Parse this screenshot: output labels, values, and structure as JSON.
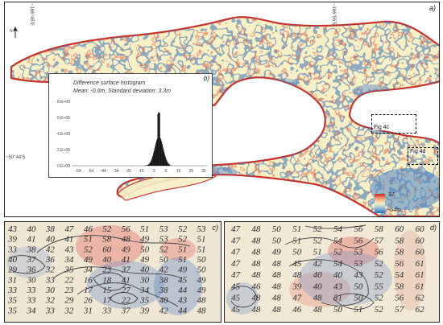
{
  "panel_a": {
    "label": "a)",
    "coords": {
      "lon_left": "~166°45'E",
      "lon_right": "~166°55'E",
      "lat": "~50°44'S"
    },
    "north_label": "N",
    "histogram": {
      "label": "b)",
      "title": "Difference surface histogram",
      "stats": "Mean: -0.6m, Standard deviation: 3.3m",
      "y_ticks": [
        "8.E+05",
        "6.E+05",
        "4.E+05",
        "2.E+05",
        "0.E+00"
      ],
      "x_ticks": [
        "-64",
        "-54",
        "-44",
        "-34",
        "-25",
        "-15",
        "-5",
        "5",
        "15",
        "25",
        "35"
      ]
    },
    "callouts": {
      "fig4c": "Fig 4c",
      "fig4d": "Fig 4d"
    },
    "colorbar": {
      "max": "37",
      "min": "-64m",
      "colors": [
        "#cc2a1e",
        "#f6f1c7",
        "#2f6fb8"
      ]
    }
  },
  "panel_c": {
    "label": "c)",
    "rows": [
      [
        "43",
        "40",
        "38",
        "47",
        "46",
        "52",
        "56",
        "51",
        "53",
        "52",
        "53"
      ],
      [
        "39",
        "41",
        "40",
        "41",
        "51",
        "58",
        "48",
        "49",
        "53",
        "52",
        "51"
      ],
      [
        "33",
        "38",
        "42",
        "43",
        "52",
        "60",
        "49",
        "50",
        "52",
        "51",
        "51"
      ],
      [
        "40",
        "37",
        "36",
        "34",
        "49",
        "40",
        "41",
        "49",
        "50",
        "51",
        "50"
      ],
      [
        "29",
        "36",
        "32",
        "35",
        "34",
        "23",
        "37",
        "40",
        "42",
        "49",
        "50"
      ],
      [
        "31",
        "30",
        "33",
        "22",
        "16",
        "18",
        "41",
        "30",
        "38",
        "45",
        "49"
      ],
      [
        "33",
        "33",
        "30",
        "23",
        "17",
        "15",
        "27",
        "34",
        "38",
        "44",
        "49"
      ],
      [
        "35",
        "33",
        "32",
        "29",
        "26",
        "17",
        "22",
        "35",
        "40",
        "43",
        "48"
      ],
      [
        "35",
        "34",
        "33",
        "32",
        "31",
        "33",
        "37",
        "39",
        "42",
        "44",
        "48"
      ]
    ]
  },
  "panel_d": {
    "label": "d)",
    "rows": [
      [
        "47",
        "48",
        "50",
        "51",
        "52",
        "54",
        "56",
        "58",
        "60",
        "60"
      ],
      [
        "47",
        "48",
        "50",
        "51",
        "52",
        "54",
        "56",
        "57",
        "58",
        "60"
      ],
      [
        "47",
        "48",
        "49",
        "50",
        "51",
        "52",
        "53",
        "56",
        "58",
        "60"
      ],
      [
        "47",
        "48",
        "48",
        "45",
        "42",
        "54",
        "53",
        "52",
        "56",
        "61"
      ],
      [
        "47",
        "48",
        "48",
        "48",
        "40",
        "40",
        "43",
        "52",
        "54",
        "61"
      ],
      [
        "45",
        "46",
        "48",
        "39",
        "40",
        "43",
        "50",
        "55",
        "58",
        "61"
      ],
      [
        "45",
        "48",
        "48",
        "47",
        "48",
        "51",
        "50",
        "52",
        "56",
        "62"
      ],
      [
        "45",
        "48",
        "48",
        "46",
        "48",
        "50",
        "51",
        "52",
        "57",
        "62"
      ]
    ]
  }
}
